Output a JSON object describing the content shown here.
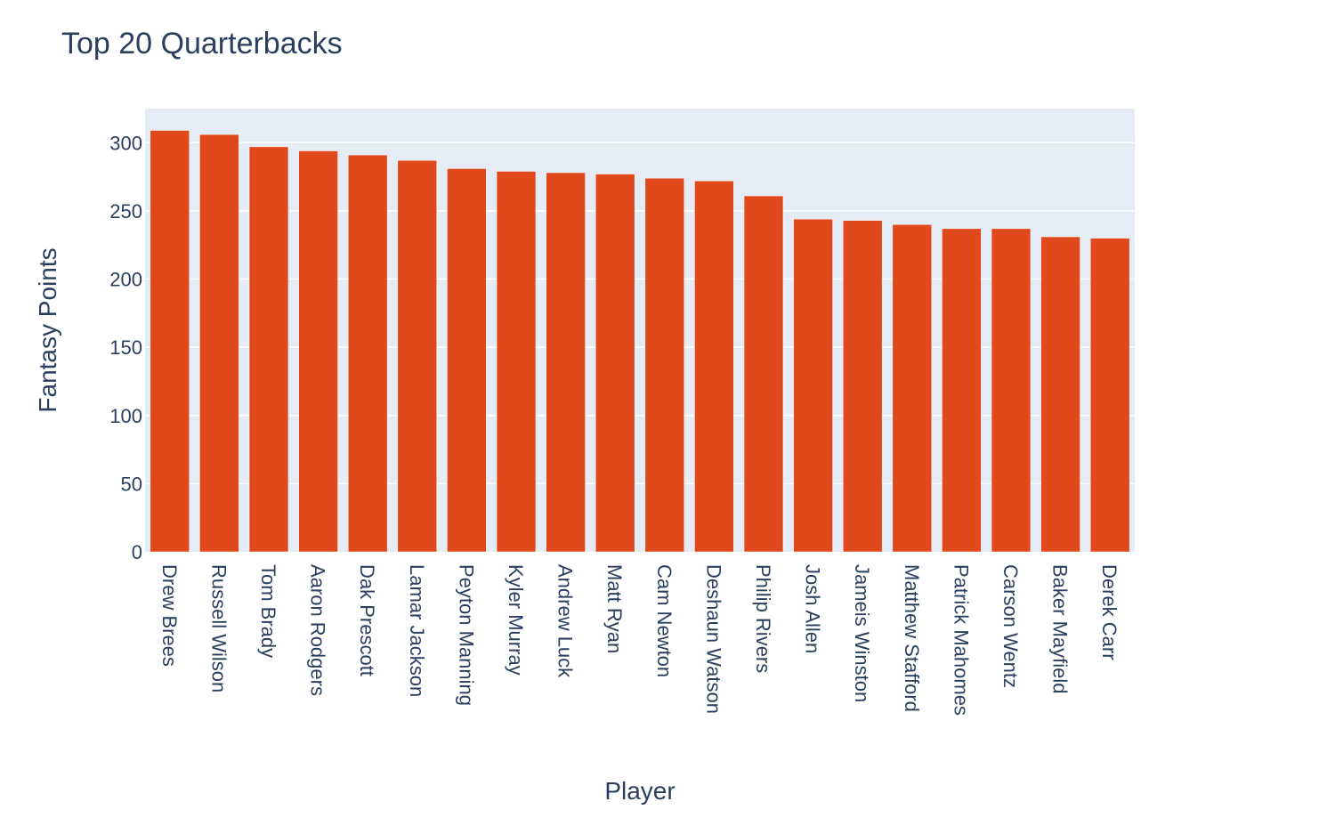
{
  "chart_data": {
    "type": "bar",
    "title": "Top 20 Quarterbacks",
    "xlabel": "Player",
    "ylabel": "Fantasy Points",
    "categories": [
      "Drew Brees",
      "Russell Wilson",
      "Tom Brady",
      "Aaron Rodgers",
      "Dak Prescott",
      "Lamar Jackson",
      "Peyton Manning",
      "Kyler Murray",
      "Andrew Luck",
      "Matt Ryan",
      "Cam Newton",
      "Deshaun Watson",
      "Philip Rivers",
      "Josh Allen",
      "Jameis Winston",
      "Matthew Stafford",
      "Patrick Mahomes",
      "Carson Wentz",
      "Baker Mayfield",
      "Derek Carr"
    ],
    "values": [
      309,
      306,
      297,
      294,
      291,
      287,
      281,
      279,
      278,
      277,
      274,
      272,
      261,
      244,
      243,
      240,
      237,
      237,
      231,
      230
    ],
    "ylim": [
      0,
      325
    ],
    "yticks": [
      0,
      50,
      100,
      150,
      200,
      250,
      300
    ],
    "grid": true,
    "legend": "none",
    "colors": {
      "bar": "#e0491c",
      "plot_background": "#e5ecf6",
      "text": "#2a3f5f",
      "gridline": "#ffffff"
    }
  }
}
